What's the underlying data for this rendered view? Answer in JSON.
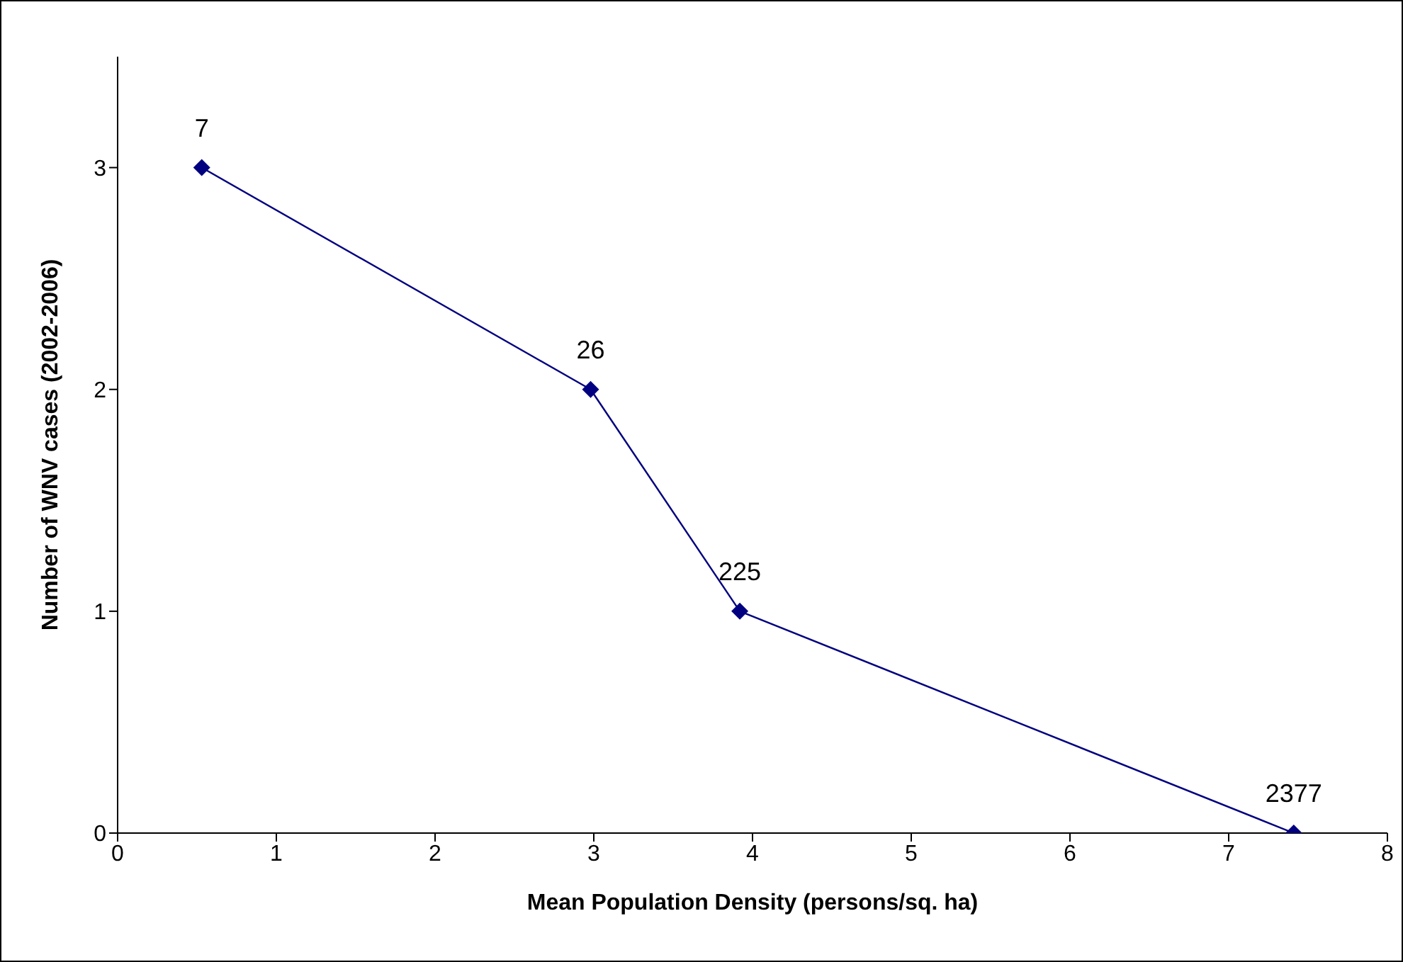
{
  "chart_data": {
    "type": "line",
    "xlabel": "Mean Population Density (persons/sq. ha)",
    "ylabel": "Number of WNV cases (2002-2006)",
    "x": [
      0.53,
      2.98,
      3.92,
      7.41
    ],
    "series": [
      {
        "color": "#000080",
        "values": [
          3,
          2,
          1,
          0
        ]
      }
    ],
    "xlim": [
      0,
      8
    ],
    "xticks": [
      0,
      1,
      2,
      3,
      4,
      5,
      6,
      7,
      8
    ],
    "ylim": [
      0,
      3.5
    ],
    "yticks": [
      0,
      1,
      2,
      3
    ],
    "annotations": [
      {
        "text": "7",
        "x": 0.53,
        "y": 3
      },
      {
        "text": "26",
        "x": 2.98,
        "y": 2
      },
      {
        "text": "225",
        "x": 3.92,
        "y": 1
      },
      {
        "text": "2377",
        "x": 7.41,
        "y": 0
      }
    ],
    "grid": false,
    "legend": false,
    "marker": "diamond",
    "line_style": "solid"
  }
}
